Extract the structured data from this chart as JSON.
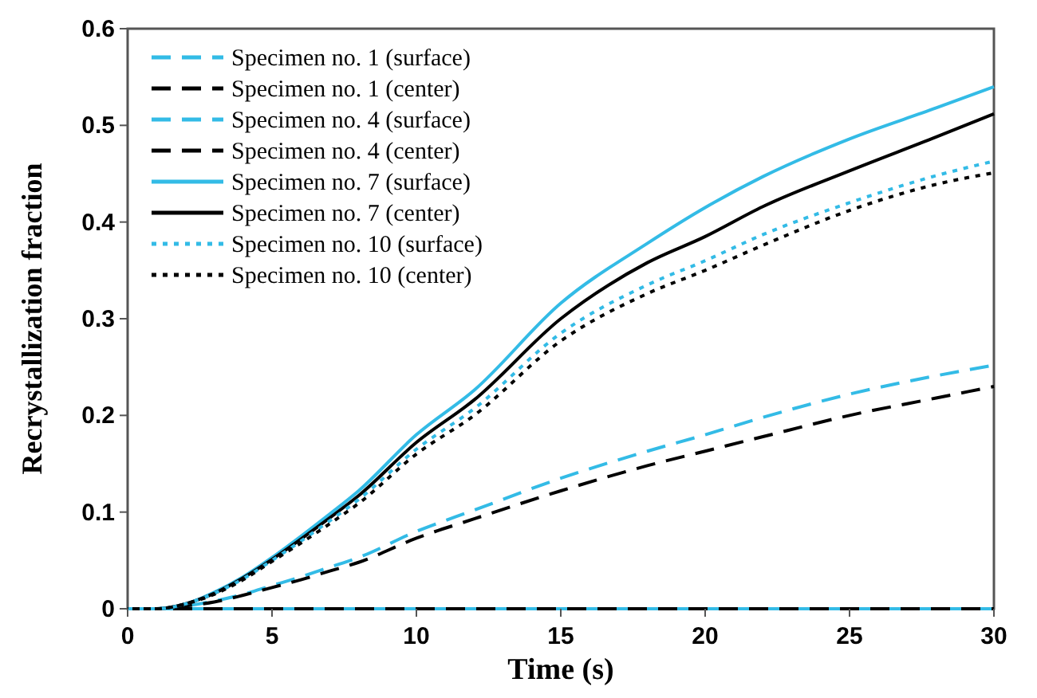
{
  "chart_data": {
    "type": "line",
    "xlabel": "Time (s)",
    "ylabel": "Recrystallization fraction",
    "x": [
      0,
      1,
      2,
      3,
      4,
      5,
      6,
      7,
      8,
      10,
      12,
      15,
      18,
      20,
      22,
      25,
      28,
      30
    ],
    "xlim": [
      0,
      30
    ],
    "xticks": [
      0,
      5,
      10,
      15,
      20,
      25,
      30
    ],
    "ylim": [
      0,
      0.6
    ],
    "yticks": [
      0,
      0.1,
      0.2,
      0.3,
      0.4,
      0.5,
      0.6
    ],
    "legend": "top left",
    "grid": false,
    "series": [
      {
        "name": "Specimen no. 1 (surface)",
        "color": "#33bbe6",
        "line_style": "dashed",
        "values": [
          0,
          0,
          0,
          0,
          0,
          0,
          0,
          0,
          0,
          0,
          0,
          0,
          0,
          0,
          0,
          0,
          0,
          0
        ]
      },
      {
        "name": "Specimen no. 1 (center)",
        "color": "#000000",
        "line_style": "dashed",
        "values": [
          0,
          0,
          0,
          0,
          0,
          0,
          0,
          0,
          0,
          0,
          0,
          0,
          0,
          0,
          0,
          0,
          0,
          0
        ]
      },
      {
        "name": "Specimen no. 4 (surface)",
        "color": "#33bbe6",
        "line_style": "dashed",
        "values": [
          0,
          0,
          0.003,
          0.008,
          0.015,
          0.024,
          0.033,
          0.043,
          0.053,
          0.08,
          0.102,
          0.135,
          0.163,
          0.18,
          0.198,
          0.222,
          0.241,
          0.252
        ]
      },
      {
        "name": "Specimen no. 4 (center)",
        "color": "#000000",
        "line_style": "dashed",
        "values": [
          0,
          0,
          0.003,
          0.007,
          0.014,
          0.022,
          0.03,
          0.039,
          0.048,
          0.073,
          0.093,
          0.122,
          0.148,
          0.163,
          0.178,
          0.2,
          0.218,
          0.23
        ]
      },
      {
        "name": "Specimen no. 7 (surface)",
        "color": "#33bbe6",
        "line_style": "solid",
        "values": [
          0,
          0,
          0.005,
          0.017,
          0.033,
          0.053,
          0.075,
          0.098,
          0.122,
          0.18,
          0.226,
          0.316,
          0.378,
          0.415,
          0.447,
          0.486,
          0.518,
          0.54
        ]
      },
      {
        "name": "Specimen no. 7 (center)",
        "color": "#000000",
        "line_style": "solid",
        "values": [
          0,
          0,
          0.005,
          0.016,
          0.032,
          0.051,
          0.072,
          0.094,
          0.117,
          0.172,
          0.216,
          0.3,
          0.358,
          0.385,
          0.416,
          0.453,
          0.488,
          0.512
        ]
      },
      {
        "name": "Specimen no. 10 (surface)",
        "color": "#33bbe6",
        "line_style": "dotted",
        "values": [
          0,
          0,
          0.005,
          0.016,
          0.031,
          0.05,
          0.07,
          0.091,
          0.113,
          0.165,
          0.207,
          0.285,
          0.335,
          0.36,
          0.387,
          0.42,
          0.448,
          0.463
        ]
      },
      {
        "name": "Specimen no. 10 (center)",
        "color": "#000000",
        "line_style": "dotted",
        "values": [
          0,
          0,
          0.005,
          0.015,
          0.03,
          0.049,
          0.068,
          0.088,
          0.109,
          0.16,
          0.2,
          0.277,
          0.326,
          0.35,
          0.376,
          0.412,
          0.439,
          0.451
        ]
      }
    ]
  }
}
